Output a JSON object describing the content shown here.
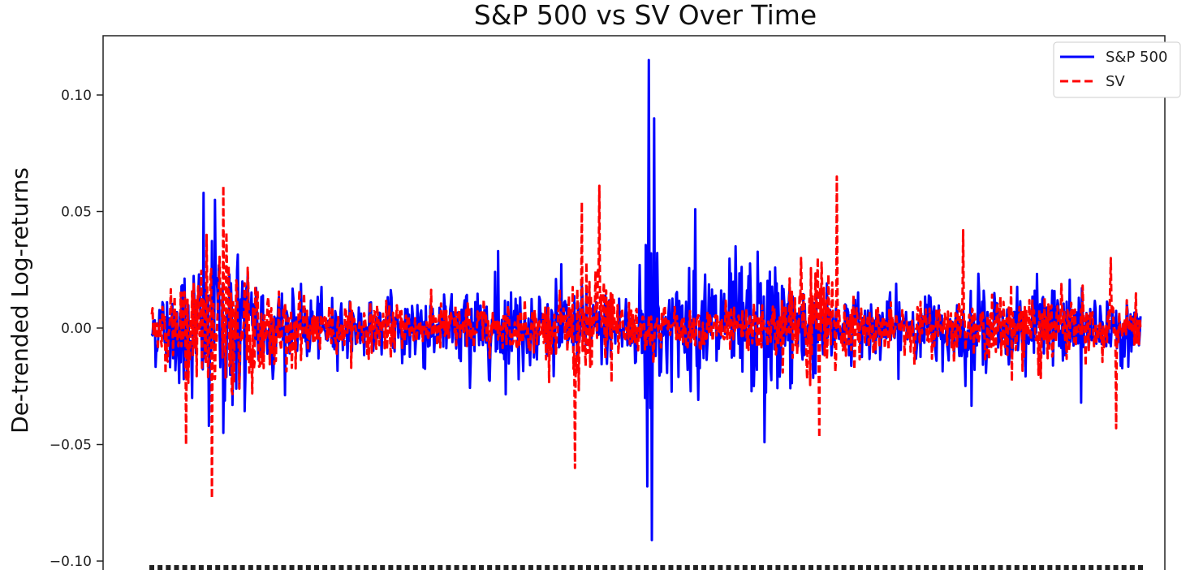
{
  "chart_data": {
    "type": "line",
    "title": "S&P 500 vs SV Over Time",
    "xlabel": "",
    "ylabel": "De-trended Log-returns",
    "ylim": [
      -0.1,
      0.12
    ],
    "yticks": [
      {
        "value": 0.1,
        "label": "0.10"
      },
      {
        "value": 0.05,
        "label": "0.05"
      },
      {
        "value": 0.0,
        "label": "0.00"
      },
      {
        "value": -0.05,
        "label": "−0.05"
      },
      {
        "value": -0.1,
        "label": "−0.10"
      }
    ],
    "legend_position": "top-right",
    "n_points": 1300,
    "series": [
      {
        "name": "S&P 500",
        "color": "#0000ff",
        "style": "solid",
        "annotated_extremes": [
          0.115,
          -0.091,
          0.058,
          -0.045,
          0.051,
          -0.049,
          0.033,
          -0.032
        ]
      },
      {
        "name": "SV",
        "color": "#ff0000",
        "style": "dashed",
        "annotated_extremes": [
          0.065,
          0.061,
          -0.073,
          -0.06,
          0.06,
          -0.05,
          0.042,
          -0.043,
          0.03
        ]
      }
    ]
  }
}
